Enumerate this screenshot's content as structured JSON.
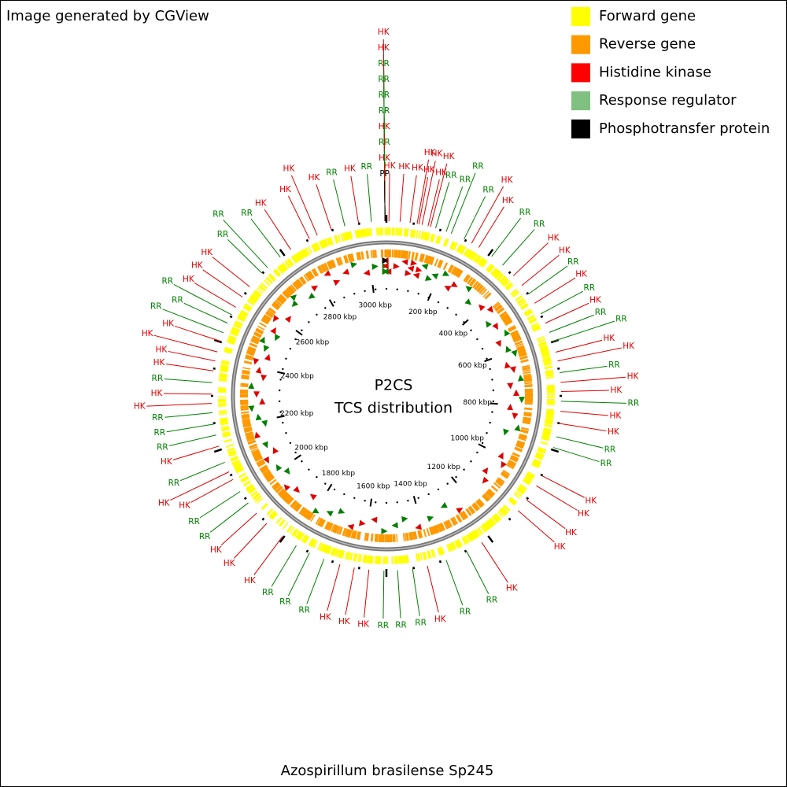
{
  "header": {
    "credit": "Image generated by CGView"
  },
  "legend": [
    {
      "label": "Forward gene",
      "color": "#ffff00"
    },
    {
      "label": "Reverse gene",
      "color": "#ff9900"
    },
    {
      "label": "Histidine kinase",
      "color": "#ff0000"
    },
    {
      "label": "Response regulator",
      "color": "#80c080"
    },
    {
      "label": "Phosphotransfer protein",
      "color": "#000000"
    }
  ],
  "map": {
    "title": "P2CS",
    "subtitle": "TCS distribution",
    "genome_length_kbp": 3060,
    "scale_ticks": [
      {
        "value": 200,
        "label": "200 kbp"
      },
      {
        "value": 400,
        "label": "400 kbp"
      },
      {
        "value": 600,
        "label": "600 kbp"
      },
      {
        "value": 800,
        "label": "800 kbp"
      },
      {
        "value": 1000,
        "label": "1000 kbp"
      },
      {
        "value": 1200,
        "label": "1200 kbp"
      },
      {
        "value": 1400,
        "label": "1400 kbp"
      },
      {
        "value": 1600,
        "label": "1600 kbp"
      },
      {
        "value": 1800,
        "label": "1800 kbp"
      },
      {
        "value": 2000,
        "label": "2000 kbp"
      },
      {
        "value": 2200,
        "label": "2200 kbp"
      },
      {
        "value": 2400,
        "label": "2400 kbp"
      },
      {
        "value": 2600,
        "label": "2600 kbp"
      },
      {
        "value": 2800,
        "label": "2800 kbp"
      },
      {
        "value": 3000,
        "label": "3000 kbp"
      }
    ],
    "features": [
      {
        "label": "HK",
        "position_kbp": 7,
        "color": "#e00000"
      },
      {
        "label": "HK",
        "position_kbp": 38,
        "color": "#e00000"
      },
      {
        "label": "HK",
        "position_kbp": 66,
        "color": "#e00000"
      },
      {
        "label": "HK",
        "position_kbp": 86,
        "color": "#e00000"
      },
      {
        "label": "HK",
        "position_kbp": 91,
        "color": "#e00000"
      },
      {
        "label": "HK",
        "position_kbp": 100,
        "color": "#e00000"
      },
      {
        "label": "HK",
        "position_kbp": 117,
        "color": "#e00000"
      },
      {
        "label": "HK",
        "position_kbp": 124,
        "color": "#e00000"
      },
      {
        "label": "RR",
        "position_kbp": 139,
        "color": "#008000"
      },
      {
        "label": "RR",
        "position_kbp": 170,
        "color": "#008000"
      },
      {
        "label": "RR",
        "position_kbp": 185,
        "color": "#008000"
      },
      {
        "label": "RR",
        "position_kbp": 224,
        "color": "#008000"
      },
      {
        "label": "HK",
        "position_kbp": 248,
        "color": "#e00000"
      },
      {
        "label": "HK",
        "position_kbp": 271,
        "color": "#e00000"
      },
      {
        "label": "RR",
        "position_kbp": 315,
        "color": "#008000"
      },
      {
        "label": "RR",
        "position_kbp": 354,
        "color": "#008000"
      },
      {
        "label": "HK",
        "position_kbp": 396,
        "color": "#e00000"
      },
      {
        "label": "HK",
        "position_kbp": 432,
        "color": "#e00000"
      },
      {
        "label": "RR",
        "position_kbp": 462,
        "color": "#008000"
      },
      {
        "label": "HK",
        "position_kbp": 493,
        "color": "#e00000"
      },
      {
        "label": "RR",
        "position_kbp": 527,
        "color": "#008000"
      },
      {
        "label": "HK",
        "position_kbp": 556,
        "color": "#e00000"
      },
      {
        "label": "RR",
        "position_kbp": 584,
        "color": "#008000"
      },
      {
        "label": "RR",
        "position_kbp": 611,
        "color": "#008000"
      },
      {
        "label": "HK",
        "position_kbp": 642,
        "color": "#e00000"
      },
      {
        "label": "HK",
        "position_kbp": 667,
        "color": "#e00000"
      },
      {
        "label": "RR",
        "position_kbp": 700,
        "color": "#008000"
      },
      {
        "label": "HK",
        "position_kbp": 727,
        "color": "#e00000"
      },
      {
        "label": "HK",
        "position_kbp": 753,
        "color": "#e00000"
      },
      {
        "label": "RR",
        "position_kbp": 780,
        "color": "#008000"
      },
      {
        "label": "HK",
        "position_kbp": 808,
        "color": "#e00000"
      },
      {
        "label": "HK",
        "position_kbp": 842,
        "color": "#e00000"
      },
      {
        "label": "RR",
        "position_kbp": 880,
        "color": "#008000"
      },
      {
        "label": "RR",
        "position_kbp": 911,
        "color": "#008000"
      },
      {
        "label": "HK",
        "position_kbp": 996,
        "color": "#e00000"
      },
      {
        "label": "HK",
        "position_kbp": 1028,
        "color": "#e00000"
      },
      {
        "label": "HK",
        "position_kbp": 1076,
        "color": "#e00000"
      },
      {
        "label": "HK",
        "position_kbp": 1114,
        "color": "#e00000"
      },
      {
        "label": "HK",
        "position_kbp": 1249,
        "color": "#e00000"
      },
      {
        "label": "RR",
        "position_kbp": 1298,
        "color": "#008000"
      },
      {
        "label": "RR",
        "position_kbp": 1360,
        "color": "#008000"
      },
      {
        "label": "HK",
        "position_kbp": 1415,
        "color": "#e00000"
      },
      {
        "label": "RR",
        "position_kbp": 1457,
        "color": "#008000"
      },
      {
        "label": "RR",
        "position_kbp": 1499,
        "color": "#008000"
      },
      {
        "label": "RR",
        "position_kbp": 1537,
        "color": "#008000"
      },
      {
        "label": "HK",
        "position_kbp": 1579,
        "color": "#e00000"
      },
      {
        "label": "HK",
        "position_kbp": 1620,
        "color": "#e00000"
      },
      {
        "label": "HK",
        "position_kbp": 1661,
        "color": "#e00000"
      },
      {
        "label": "RR",
        "position_kbp": 1708,
        "color": "#008000"
      },
      {
        "label": "RR",
        "position_kbp": 1752,
        "color": "#008000"
      },
      {
        "label": "RR",
        "position_kbp": 1794,
        "color": "#008000"
      },
      {
        "label": "HK",
        "position_kbp": 1840,
        "color": "#e00000"
      },
      {
        "label": "HK",
        "position_kbp": 1897,
        "color": "#e00000"
      },
      {
        "label": "HK",
        "position_kbp": 1937,
        "color": "#e00000"
      },
      {
        "label": "RR",
        "position_kbp": 1974,
        "color": "#008000"
      },
      {
        "label": "RR",
        "position_kbp": 2013,
        "color": "#008000"
      },
      {
        "label": "HK",
        "position_kbp": 2052,
        "color": "#e00000"
      },
      {
        "label": "HK",
        "position_kbp": 2076,
        "color": "#e00000"
      },
      {
        "label": "RR",
        "position_kbp": 2105,
        "color": "#008000"
      },
      {
        "label": "HK",
        "position_kbp": 2153,
        "color": "#e00000"
      },
      {
        "label": "RR",
        "position_kbp": 2185,
        "color": "#008000"
      },
      {
        "label": "RR",
        "position_kbp": 2216,
        "color": "#008000"
      },
      {
        "label": "RR",
        "position_kbp": 2248,
        "color": "#008000"
      },
      {
        "label": "HK",
        "position_kbp": 2274,
        "color": "#e00000"
      },
      {
        "label": "HK",
        "position_kbp": 2300,
        "color": "#e00000"
      },
      {
        "label": "RR",
        "position_kbp": 2332,
        "color": "#008000"
      },
      {
        "label": "HK",
        "position_kbp": 2365,
        "color": "#e00000"
      },
      {
        "label": "HK",
        "position_kbp": 2393,
        "color": "#e00000"
      },
      {
        "label": "HK",
        "position_kbp": 2419,
        "color": "#e00000"
      },
      {
        "label": "HK",
        "position_kbp": 2450,
        "color": "#e00000"
      },
      {
        "label": "RR",
        "position_kbp": 2475,
        "color": "#008000"
      },
      {
        "label": "RR",
        "position_kbp": 2504,
        "color": "#008000"
      },
      {
        "label": "RR",
        "position_kbp": 2530,
        "color": "#008000"
      },
      {
        "label": "HK",
        "position_kbp": 2554,
        "color": "#e00000"
      },
      {
        "label": "HK",
        "position_kbp": 2588,
        "color": "#e00000"
      },
      {
        "label": "HK",
        "position_kbp": 2623,
        "color": "#e00000"
      },
      {
        "label": "RR",
        "position_kbp": 2674,
        "color": "#008000"
      },
      {
        "label": "RR",
        "position_kbp": 2696,
        "color": "#008000"
      },
      {
        "label": "RR",
        "position_kbp": 2742,
        "color": "#008000"
      },
      {
        "label": "HK",
        "position_kbp": 2778,
        "color": "#e00000"
      },
      {
        "label": "HK",
        "position_kbp": 2838,
        "color": "#e00000"
      },
      {
        "label": "HK",
        "position_kbp": 2862,
        "color": "#e00000"
      },
      {
        "label": "HK",
        "position_kbp": 2904,
        "color": "#e00000"
      },
      {
        "label": "RR",
        "position_kbp": 2943,
        "color": "#008000"
      },
      {
        "label": "HK",
        "position_kbp": 2982,
        "color": "#e00000"
      },
      {
        "label": "RR",
        "position_kbp": 3018,
        "color": "#008000"
      },
      {
        "label": "HK",
        "position_kbp": 3056,
        "color": "#e00000"
      },
      {
        "label": "HK",
        "position_kbp": 3056,
        "color": "#e00000"
      },
      {
        "label": "RR",
        "position_kbp": 3056,
        "color": "#008000"
      },
      {
        "label": "RR",
        "position_kbp": 3056,
        "color": "#008000"
      },
      {
        "label": "RR",
        "position_kbp": 3056,
        "color": "#008000"
      },
      {
        "label": "RR",
        "position_kbp": 3056,
        "color": "#008000"
      },
      {
        "label": "HK",
        "position_kbp": 3056,
        "color": "#e00000"
      },
      {
        "label": "RR",
        "position_kbp": 3056,
        "color": "#008000"
      },
      {
        "label": "HK",
        "position_kbp": 3056,
        "color": "#e00000"
      },
      {
        "label": "PP",
        "position_kbp": 3056,
        "color": "#000000"
      }
    ]
  },
  "footer": {
    "organism": "Azospirillum brasilense Sp245"
  }
}
